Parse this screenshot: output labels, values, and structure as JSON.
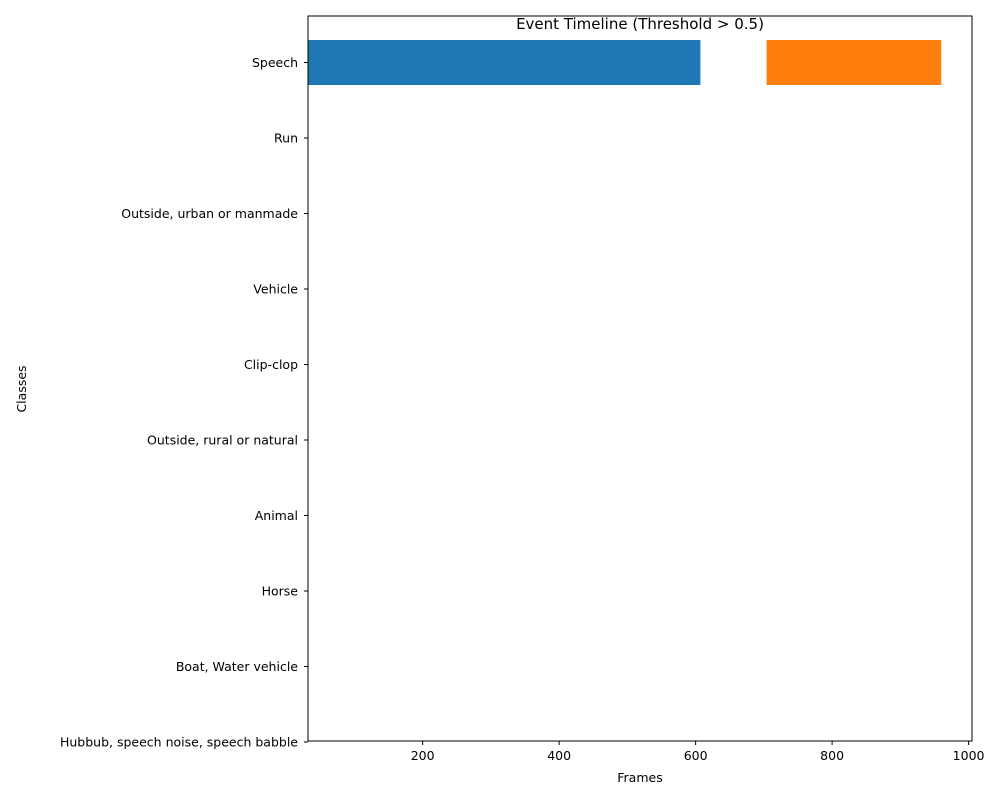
{
  "chart_data": {
    "type": "bar",
    "orientation": "horizontal",
    "title": "Event Timeline (Threshold > 0.5)",
    "xlabel": "Frames",
    "ylabel": "Classes",
    "xlim": [
      32,
      1005
    ],
    "xticks": [
      200,
      400,
      600,
      800,
      1000
    ],
    "categories": [
      "Speech",
      "Run",
      "Outside, urban or manmade",
      "Vehicle",
      "Clip-clop",
      "Outside, rural or natural",
      "Animal",
      "Horse",
      "Boat, Water vehicle",
      "Hubbub, speech noise, speech babble"
    ],
    "segments": [
      {
        "category": "Speech",
        "start": 32,
        "end": 607,
        "color": "#1f77b4"
      },
      {
        "category": "Speech",
        "start": 704,
        "end": 960,
        "color": "#ff7f0e"
      }
    ],
    "grid": false
  }
}
